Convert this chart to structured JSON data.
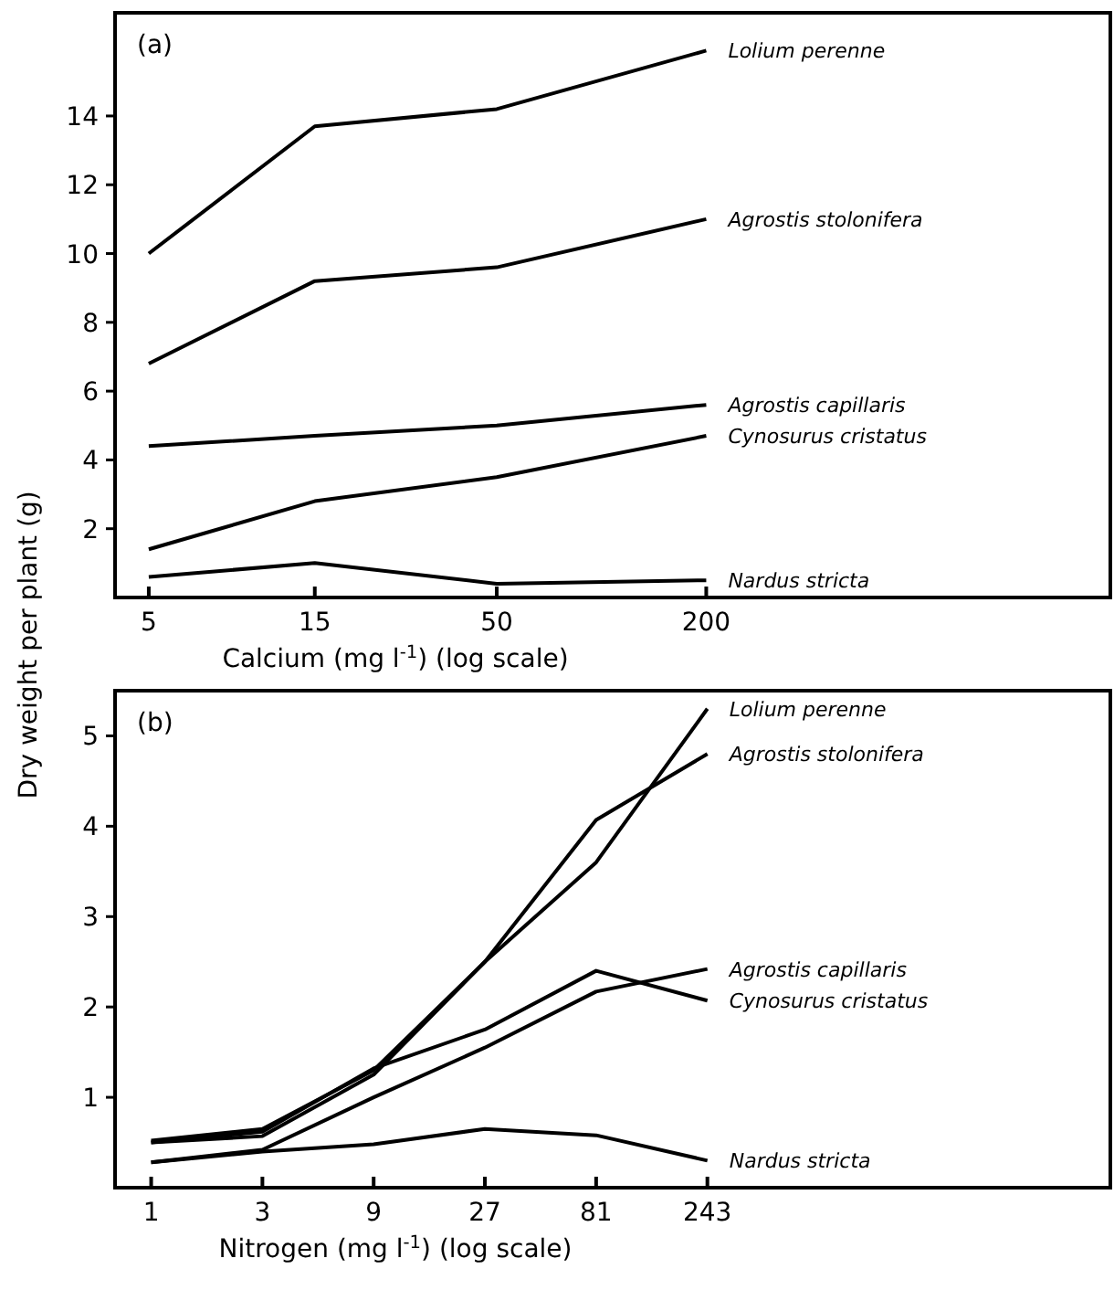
{
  "chart_data": [
    {
      "type": "line",
      "title": "(a)",
      "xlabel": "Calcium (mg l$^{-1}$) (log scale)",
      "ylabel": "Dry weight per plant (g)",
      "log": "x",
      "x": [
        5,
        15,
        50,
        200
      ],
      "xlim": [
        4,
        2900
      ],
      "xticks": [
        5,
        15,
        50,
        200
      ],
      "ylim": [
        0,
        17
      ],
      "yticks": [
        2,
        4,
        6,
        8,
        10,
        12,
        14
      ],
      "marker": "none",
      "line_style": "solid",
      "series": [
        {
          "name": "Lolium perenne",
          "color": "#000000",
          "values": [
            10.0,
            13.7,
            14.2,
            15.9
          ]
        },
        {
          "name": "Agrostis stolonifera",
          "color": "#000000",
          "values": [
            6.8,
            9.2,
            9.6,
            11.0
          ]
        },
        {
          "name": "Agrostis capillaris",
          "color": "#000000",
          "values": [
            4.4,
            4.7,
            5.0,
            5.6
          ]
        },
        {
          "name": "Cynosurus cristatus",
          "color": "#000000",
          "values": [
            1.4,
            2.8,
            3.5,
            4.7
          ]
        },
        {
          "name": "Nardus stricta",
          "color": "#000000",
          "values": [
            0.6,
            1.0,
            0.4,
            0.5
          ]
        }
      ]
    },
    {
      "type": "line",
      "title": "(b)",
      "xlabel": "Nitrogen (mg l$^{-1}$) (log scale)",
      "log": "x",
      "x": [
        1,
        3,
        9,
        27,
        81,
        243
      ],
      "xlim": [
        0.7,
        13000
      ],
      "xticks": [
        1,
        3,
        9,
        27,
        81,
        243
      ],
      "ylim": [
        0,
        5.5
      ],
      "yticks": [
        1,
        2,
        3,
        4,
        5
      ],
      "marker": "none",
      "line_style": "solid",
      "series": [
        {
          "name": "Lolium perenne",
          "color": "#000000",
          "values": [
            0.5,
            0.57,
            1.25,
            2.5,
            3.6,
            5.3
          ]
        },
        {
          "name": "Agrostis stolonifera",
          "color": "#000000",
          "values": [
            0.52,
            0.65,
            1.3,
            2.5,
            4.07,
            4.8
          ]
        },
        {
          "name": "Agrostis capillaris",
          "color": "#000000",
          "values": [
            0.28,
            0.42,
            1.0,
            1.55,
            2.17,
            2.42
          ]
        },
        {
          "name": "Cynosurus cristatus",
          "color": "#000000",
          "values": [
            0.5,
            0.62,
            1.32,
            1.75,
            2.4,
            2.07
          ]
        },
        {
          "name": "Nardus stricta",
          "color": "#000000",
          "values": [
            0.28,
            0.4,
            0.48,
            0.65,
            0.58,
            0.3
          ]
        }
      ]
    }
  ]
}
